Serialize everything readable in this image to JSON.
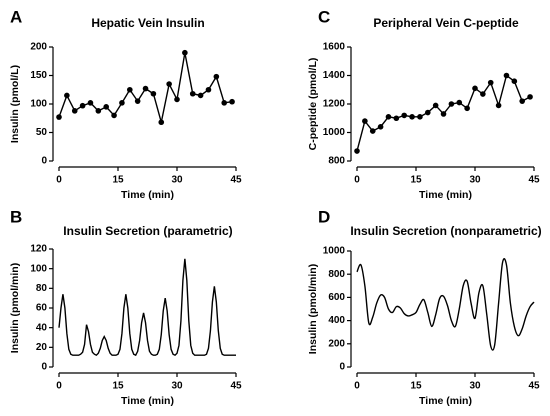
{
  "chart_data": [
    {
      "panel": "A",
      "type": "line",
      "title": "Hepatic Vein Insulin",
      "xlabel": "Time (min)",
      "ylabel": "Insulin (pmol/L)",
      "color": "#000000",
      "markers": true,
      "smooth": false,
      "x": [
        0,
        2,
        4,
        6,
        8,
        10,
        12,
        14,
        16,
        18,
        20,
        22,
        24,
        26,
        28,
        30,
        32,
        34,
        36,
        38,
        40,
        42,
        44
      ],
      "values": [
        77,
        115,
        88,
        97,
        102,
        88,
        95,
        80,
        102,
        125,
        105,
        127,
        118,
        68,
        135,
        108,
        190,
        118,
        115,
        125,
        148,
        102,
        104
      ],
      "xlim": [
        0,
        45
      ],
      "xticks": [
        0,
        15,
        30,
        45
      ],
      "ylim": [
        0,
        200
      ],
      "yticks": [
        0,
        50,
        100,
        150,
        200
      ]
    },
    {
      "panel": "B",
      "type": "line",
      "title": "Insulin Secretion (parametric)",
      "xlabel": "Time (min)",
      "ylabel": "Insulin (pmol/min)",
      "color": "#000000",
      "markers": false,
      "smooth": false,
      "x": [
        0,
        0.5,
        1,
        1.5,
        2,
        2.5,
        3,
        3.5,
        4,
        4.5,
        5,
        5.5,
        6,
        6.5,
        7,
        7.5,
        8,
        8.5,
        9,
        9.5,
        10,
        10.5,
        11,
        11.5,
        12,
        12.5,
        13,
        13.5,
        14,
        14.5,
        15,
        15.5,
        16,
        16.5,
        17,
        17.5,
        18,
        18.5,
        19,
        19.5,
        20,
        20.5,
        21,
        21.5,
        22,
        22.5,
        23,
        23.5,
        24,
        24.5,
        25,
        25.5,
        26,
        26.5,
        27,
        27.5,
        28,
        28.5,
        29,
        29.5,
        30,
        30.5,
        31,
        31.5,
        32,
        32.5,
        33,
        33.5,
        34,
        34.5,
        35,
        35.5,
        36,
        36.5,
        37,
        37.5,
        38,
        38.5,
        39,
        39.5,
        40,
        40.5,
        41,
        41.5,
        42,
        42.5,
        43,
        43.5,
        44,
        44.5,
        45
      ],
      "values": [
        40,
        60,
        74,
        60,
        34,
        18,
        13,
        12,
        12,
        12,
        12,
        13,
        15,
        23,
        43,
        36,
        23,
        15,
        13,
        12,
        14,
        19,
        27,
        31,
        27,
        19,
        14,
        12,
        12,
        12,
        13,
        18,
        34,
        60,
        74,
        60,
        34,
        18,
        13,
        12,
        16,
        27,
        45,
        55,
        45,
        27,
        16,
        13,
        12,
        12,
        13,
        18,
        33,
        57,
        70,
        57,
        33,
        18,
        13,
        12,
        14,
        22,
        47,
        88,
        110,
        88,
        47,
        22,
        14,
        12,
        12,
        12,
        12,
        12,
        12,
        13,
        19,
        37,
        66,
        82,
        66,
        37,
        19,
        13,
        12,
        12,
        12,
        12,
        12,
        12,
        12
      ],
      "xlim": [
        0,
        45
      ],
      "xticks": [
        0,
        15,
        30,
        45
      ],
      "ylim": [
        0,
        120
      ],
      "yticks": [
        0,
        20,
        40,
        60,
        80,
        100,
        120
      ]
    },
    {
      "panel": "C",
      "type": "line",
      "title": "Peripheral Vein C-peptide",
      "xlabel": "Time (min)",
      "ylabel": "C-peptide (pmol/L)",
      "color": "#000000",
      "markers": true,
      "smooth": false,
      "x": [
        0,
        2,
        4,
        6,
        8,
        10,
        12,
        14,
        16,
        18,
        20,
        22,
        24,
        26,
        28,
        30,
        32,
        34,
        36,
        38,
        40,
        42,
        44
      ],
      "values": [
        870,
        1080,
        1010,
        1040,
        1110,
        1100,
        1120,
        1110,
        1110,
        1140,
        1190,
        1130,
        1200,
        1210,
        1170,
        1310,
        1270,
        1350,
        1190,
        1400,
        1360,
        1220,
        1250
      ],
      "xlim": [
        0,
        45
      ],
      "xticks": [
        0,
        15,
        30,
        45
      ],
      "ylim": [
        800,
        1600
      ],
      "yticks": [
        800,
        1000,
        1200,
        1400,
        1600
      ]
    },
    {
      "panel": "D",
      "type": "line",
      "title": "Insulin Secretion (nonparametric)",
      "xlabel": "Time (min)",
      "ylabel": "Insulin (pmol/min)",
      "color": "#000000",
      "markers": false,
      "smooth": true,
      "x": [
        0,
        1,
        2,
        3,
        4,
        5,
        6,
        7,
        8,
        9,
        10,
        11,
        12,
        13,
        14,
        15,
        16,
        17,
        18,
        19,
        20,
        21,
        22,
        23,
        24,
        25,
        26,
        27,
        28,
        29,
        30,
        31,
        32,
        33,
        34,
        35,
        36,
        37,
        38,
        39,
        40,
        41,
        42,
        43,
        44,
        45
      ],
      "values": [
        820,
        880,
        700,
        380,
        430,
        550,
        620,
        600,
        500,
        470,
        520,
        510,
        460,
        440,
        450,
        470,
        540,
        580,
        470,
        350,
        450,
        590,
        610,
        530,
        400,
        350,
        500,
        700,
        740,
        550,
        420,
        640,
        700,
        450,
        180,
        190,
        550,
        900,
        880,
        550,
        350,
        270,
        330,
        440,
        520,
        560
      ],
      "xlim": [
        0,
        45
      ],
      "xticks": [
        0,
        15,
        30,
        45
      ],
      "ylim": [
        0,
        1000
      ],
      "yticks": [
        0,
        200,
        400,
        600,
        800,
        1000
      ]
    }
  ]
}
